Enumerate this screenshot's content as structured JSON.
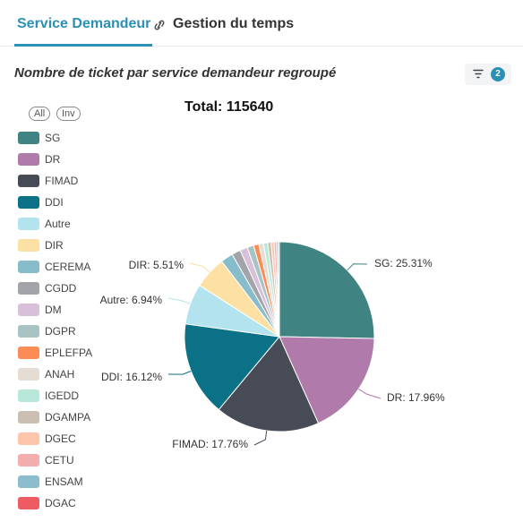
{
  "tabs": {
    "active_label": "Service Demandeur",
    "inactive_label": "Gestion du temps"
  },
  "chart_header": {
    "title": "Nombre de ticket par service demandeur regroupé",
    "filter_count": "2"
  },
  "legend_controls": {
    "all": "All",
    "inv": "Inv"
  },
  "colors": {
    "accent": "#2c8fb5"
  },
  "chart_data": {
    "type": "pie",
    "title": "Total: 115640",
    "total": 115640,
    "legend_position": "left",
    "slices": [
      {
        "name": "SG",
        "percent": 25.31,
        "label": "SG: 25.31%",
        "color": "#3f8382"
      },
      {
        "name": "DR",
        "percent": 17.96,
        "label": "DR: 17.96%",
        "color": "#b07aab"
      },
      {
        "name": "FIMAD",
        "percent": 17.76,
        "label": "FIMAD: 17.76%",
        "color": "#464b56"
      },
      {
        "name": "DDI",
        "percent": 16.12,
        "label": "DDI: 16.12%",
        "color": "#0a7186"
      },
      {
        "name": "Autre",
        "percent": 6.94,
        "label": "Autre: 6.94%",
        "color": "#b3e3ef"
      },
      {
        "name": "DIR",
        "percent": 5.51,
        "label": "DIR: 5.51%",
        "color": "#fde0a3"
      },
      {
        "name": "CEREMA",
        "percent": 2.1,
        "label": "",
        "color": "#87bccb"
      },
      {
        "name": "CGDD",
        "percent": 1.5,
        "label": "",
        "color": "#a2a4a9"
      },
      {
        "name": "DM",
        "percent": 1.3,
        "label": "",
        "color": "#d8c0d9"
      },
      {
        "name": "DGPR",
        "percent": 1.1,
        "label": "",
        "color": "#a8c3c3"
      },
      {
        "name": "EPLEFPA",
        "percent": 0.9,
        "label": "",
        "color": "#fb8c55"
      },
      {
        "name": "ANAH",
        "percent": 0.8,
        "label": "",
        "color": "#e5ddd3"
      },
      {
        "name": "IGEDD",
        "percent": 0.7,
        "label": "",
        "color": "#b8e8d9"
      },
      {
        "name": "DGAMPA",
        "percent": 0.6,
        "label": "",
        "color": "#cbbfb2"
      },
      {
        "name": "DGEC",
        "percent": 0.5,
        "label": "",
        "color": "#fdc6ab"
      },
      {
        "name": "CETU",
        "percent": 0.4,
        "label": "",
        "color": "#f4adad"
      },
      {
        "name": "ENSAM",
        "percent": 0.3,
        "label": "",
        "color": "#8cbdce"
      },
      {
        "name": "DGAC",
        "percent": 0.2,
        "label": "",
        "color": "#ee5b62"
      }
    ]
  }
}
